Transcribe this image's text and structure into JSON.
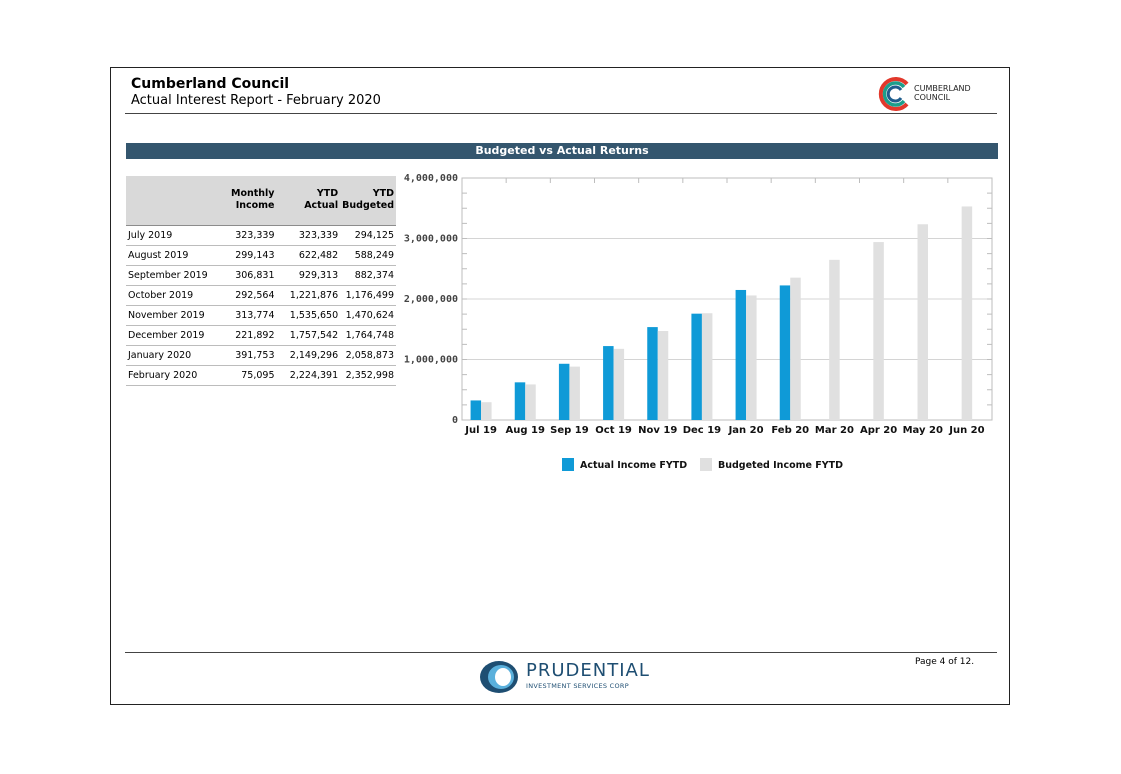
{
  "header": {
    "organization": "Cumberland Council",
    "report_title": "Actual Interest Report - February 2020",
    "logo_line1": "CUMBERLAND",
    "logo_line2": "COUNCIL"
  },
  "section_title": "Budgeted vs Actual Returns",
  "table": {
    "headers": [
      {
        "line1": "",
        "line2": ""
      },
      {
        "line1": "Monthly",
        "line2": "Income"
      },
      {
        "line1": "YTD",
        "line2": "Actual"
      },
      {
        "line1": "YTD",
        "line2": "Budgeted"
      }
    ],
    "rows": [
      [
        "July 2019",
        "323,339",
        "323,339",
        "294,125"
      ],
      [
        "August 2019",
        "299,143",
        "622,482",
        "588,249"
      ],
      [
        "September 2019",
        "306,831",
        "929,313",
        "882,374"
      ],
      [
        "October 2019",
        "292,564",
        "1,221,876",
        "1,176,499"
      ],
      [
        "November 2019",
        "313,774",
        "1,535,650",
        "1,470,624"
      ],
      [
        "December 2019",
        "221,892",
        "1,757,542",
        "1,764,748"
      ],
      [
        "January 2020",
        "391,753",
        "2,149,296",
        "2,058,873"
      ],
      [
        "February 2020",
        "75,095",
        "2,224,391",
        "2,352,998"
      ]
    ]
  },
  "chart_data": {
    "type": "bar",
    "title": "Budgeted vs Actual Returns",
    "categories": [
      "Jul 19",
      "Aug 19",
      "Sep 19",
      "Oct 19",
      "Nov 19",
      "Dec 19",
      "Jan 20",
      "Feb 20",
      "Mar 20",
      "Apr 20",
      "May 20",
      "Jun 20"
    ],
    "series": [
      {
        "name": "Actual Income FYTD",
        "color": "#0f9ad7",
        "values": [
          323339,
          622482,
          929313,
          1221876,
          1535650,
          1757542,
          2149296,
          2224391,
          null,
          null,
          null,
          null
        ]
      },
      {
        "name": "Budgeted Income FYTD",
        "color": "#e0e0e0",
        "values": [
          294125,
          588249,
          882374,
          1176499,
          1470624,
          1764748,
          2058873,
          2352998,
          2647122,
          2941247,
          3235372,
          3529496
        ]
      }
    ],
    "y_ticks": [
      "0",
      "1,000,000",
      "2,000,000",
      "3,000,000",
      "4,000,000"
    ],
    "ylim": [
      0,
      4000000
    ],
    "xlabel": "",
    "ylabel": "",
    "grid": true,
    "legend_position": "bottom"
  },
  "footer": {
    "brand_name": "PRUDENTIAL",
    "brand_sub": "INVESTMENT SERVICES CORP",
    "page": "Page 4 of 12."
  }
}
